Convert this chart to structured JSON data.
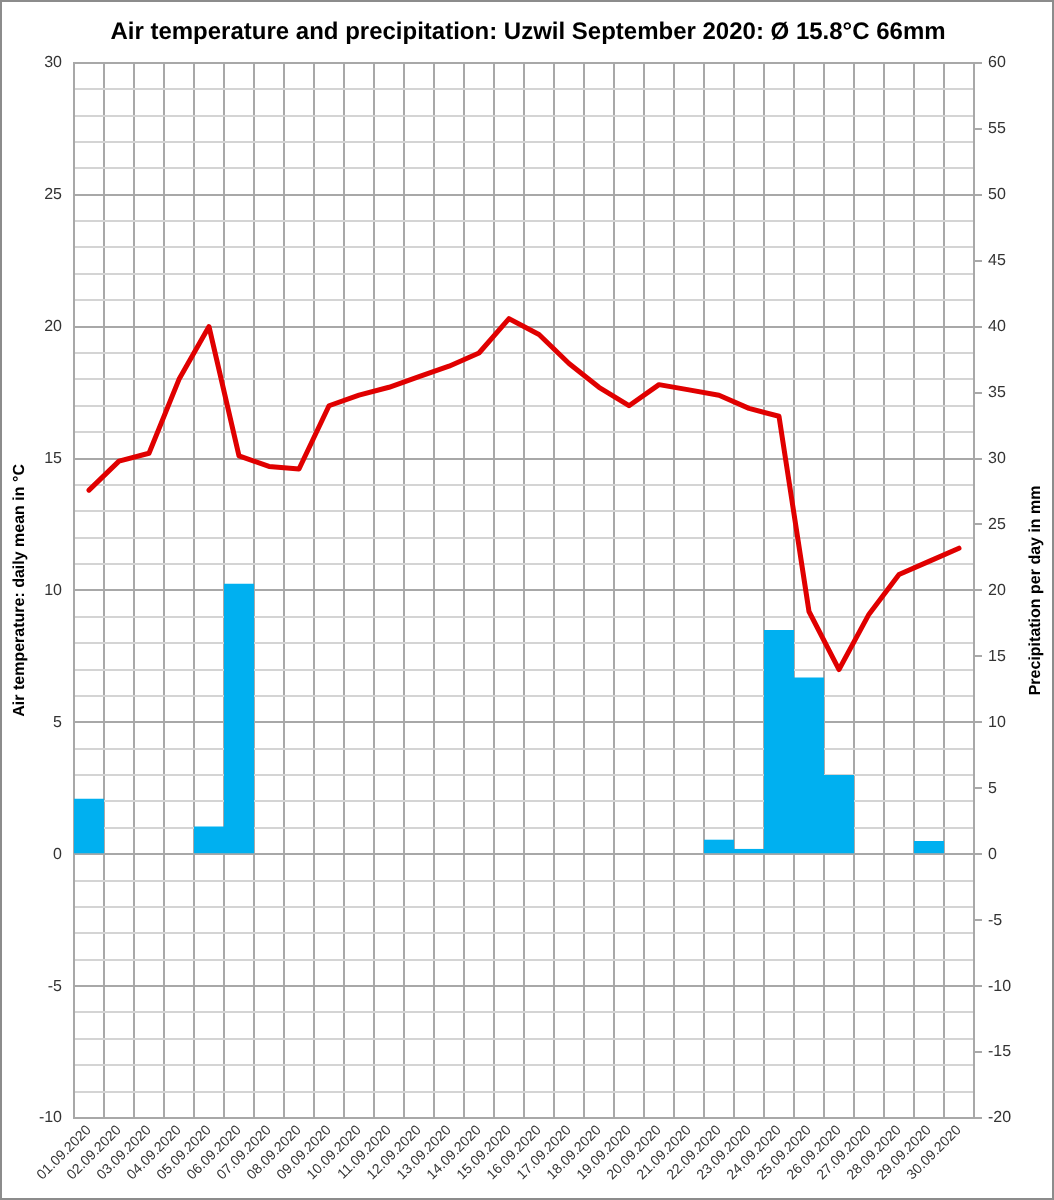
{
  "chart_data": {
    "type": "bar",
    "title": "Air temperature and precipitation: Uzwil September 2020: Ø 15.8°C 66mm",
    "ylabel": "Air temperature: daily mean in °C",
    "y2label": "Precipitation per day in mm",
    "categories": [
      "01.09.2020",
      "02.09.2020",
      "03.09.2020",
      "04.09.2020",
      "05.09.2020",
      "06.09.2020",
      "07.09.2020",
      "08.09.2020",
      "09.09.2020",
      "10.09.2020",
      "11.09.2020",
      "12.09.2020",
      "13.09.2020",
      "14.09.2020",
      "15.09.2020",
      "16.09.2020",
      "17.09.2020",
      "18.09.2020",
      "19.09.2020",
      "20.09.2020",
      "21.09.2020",
      "22.09.2020",
      "23.09.2020",
      "24.09.2020",
      "25.09.2020",
      "26.09.2020",
      "27.09.2020",
      "28.09.2020",
      "29.09.2020",
      "30.09.2020"
    ],
    "series": [
      {
        "axis": "y2",
        "color": "#00b0f0",
        "values": [
          4.2,
          0,
          0,
          0,
          2.1,
          20.5,
          0,
          0,
          0,
          0,
          0,
          0,
          0,
          0,
          0,
          0,
          0,
          0,
          0,
          0,
          0,
          1.1,
          0.4,
          17.0,
          13.4,
          6.0,
          0,
          0,
          1.0,
          0
        ]
      },
      {
        "type": "line",
        "color": "#e00000",
        "values": [
          13.8,
          14.9,
          15.2,
          18.0,
          20.0,
          15.1,
          14.7,
          14.6,
          17.0,
          17.4,
          17.7,
          18.1,
          18.5,
          19.0,
          20.3,
          19.7,
          18.6,
          17.7,
          17.0,
          17.8,
          17.6,
          17.4,
          16.9,
          16.6,
          9.2,
          7.0,
          9.1,
          10.6,
          11.1,
          11.6
        ]
      }
    ],
    "ylim": [
      -10,
      30
    ],
    "yticks": [
      -10,
      {
        "value": -9,
        "label": null
      },
      {
        "value": -8,
        "label": null
      },
      {
        "value": -7,
        "label": null
      },
      {
        "value": -6,
        "label": null
      },
      -5,
      {
        "value": -4,
        "label": null
      },
      {
        "value": -3,
        "label": null
      },
      {
        "value": -2,
        "label": null
      },
      {
        "value": -1,
        "label": null
      },
      0,
      {
        "value": 1,
        "label": null
      },
      {
        "value": 2,
        "label": null
      },
      {
        "value": 3,
        "label": null
      },
      {
        "value": 4,
        "label": null
      },
      5,
      {
        "value": 6,
        "label": null
      },
      {
        "value": 7,
        "label": null
      },
      {
        "value": 8,
        "label": null
      },
      {
        "value": 9,
        "label": null
      },
      10,
      {
        "value": 11,
        "label": null
      },
      {
        "value": 12,
        "label": null
      },
      {
        "value": 13,
        "label": null
      },
      {
        "value": 14,
        "label": null
      },
      15,
      {
        "value": 16,
        "label": null
      },
      {
        "value": 17,
        "label": null
      },
      {
        "value": 18,
        "label": null
      },
      {
        "value": 19,
        "label": null
      },
      20,
      {
        "value": 21,
        "label": null
      },
      {
        "value": 22,
        "label": null
      },
      {
        "value": 23,
        "label": null
      },
      {
        "value": 24,
        "label": null
      },
      25,
      {
        "value": 26,
        "label": null
      },
      {
        "value": 27,
        "label": null
      },
      {
        "value": 28,
        "label": null
      },
      {
        "value": 29,
        "label": null
      },
      30
    ],
    "y2lim": [
      -20,
      60
    ],
    "y2ticks": [
      -20,
      -15,
      -10,
      -5,
      0,
      5,
      10,
      15,
      20,
      25,
      30,
      35,
      40,
      45,
      50,
      55,
      60
    ],
    "grid": true,
    "marker": "none",
    "line_style": "solid"
  }
}
